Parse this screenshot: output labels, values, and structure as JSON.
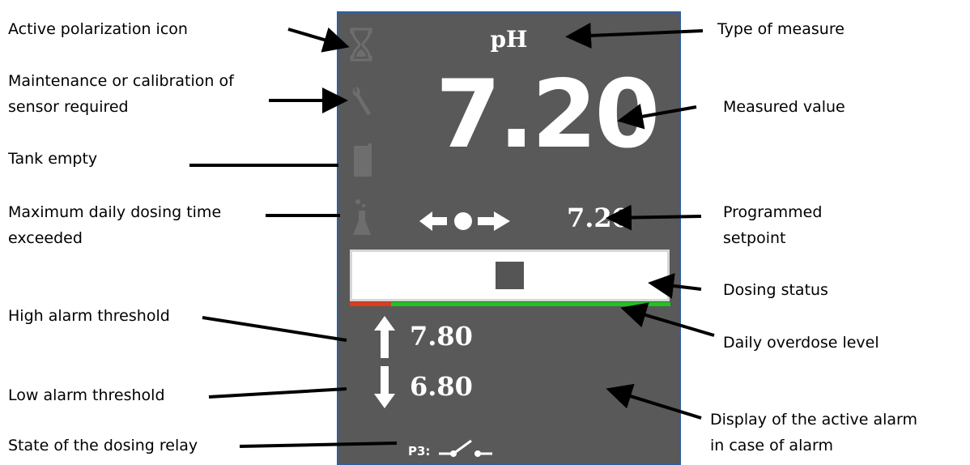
{
  "labels": {
    "active_polarization_icon": "Active polarization icon",
    "maintenance_line1": "Maintenance or calibration of",
    "maintenance_line2": "sensor required",
    "tank_empty": "Tank empty",
    "max_dosing_line1": "Maximum daily dosing time",
    "max_dosing_line2": "exceeded",
    "high_alarm_threshold": "High alarm threshold",
    "low_alarm_threshold": "Low alarm threshold",
    "relay_state": "State of the dosing relay",
    "type_of_measure": "Type of measure",
    "measured_value": "Measured value",
    "setpoint_line1": "Programmed",
    "setpoint_line2": "setpoint",
    "dosing_status": "Dosing status",
    "daily_overdose_level": "Daily overdose level",
    "active_alarm_line1": "Display of the active alarm",
    "active_alarm_line2": "in case of alarm"
  },
  "display": {
    "measure_type": "pH",
    "measured_value": "7.20",
    "setpoint": "7.20",
    "high_alarm": "7.80",
    "low_alarm": "6.80",
    "relay_label": "P3:",
    "daily_overdose_fraction": 0.13
  },
  "colors": {
    "panel_bg": "#595959",
    "panel_border": "#2f5f9e",
    "overdose_ok": "#1fc41f",
    "overdose_used": "#e23a1c",
    "icon_inactive": "#6e6e6e"
  },
  "icons": [
    "hourglass-icon",
    "wrench-icon",
    "tank-icon",
    "flask-icon",
    "double-arrow-setpoint-icon",
    "arrow-up-icon",
    "arrow-down-icon",
    "relay-switch-icon"
  ]
}
